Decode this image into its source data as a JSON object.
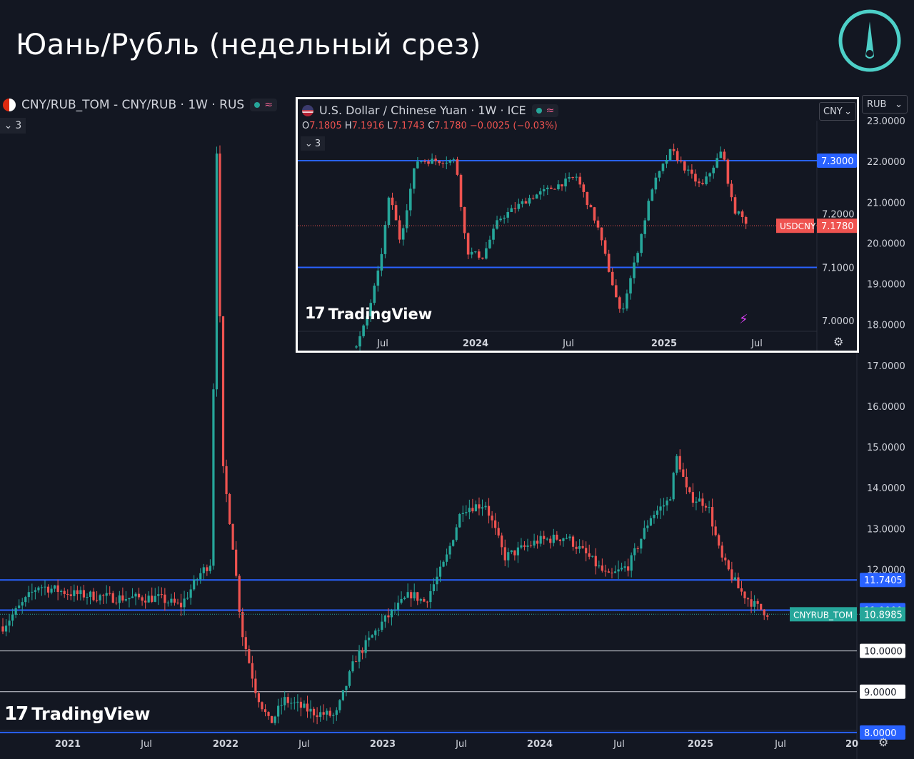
{
  "page": {
    "title": "Юань/Рубль (недельный срез)"
  },
  "main_header": {
    "symbol": "CNY/RUB_TOM - CNY/RUB · 1W · RUS",
    "collapse_label": "3",
    "currency": "RUB"
  },
  "inset_header": {
    "symbol": "U.S. Dollar / Chinese Yuan · 1W · ICE",
    "ohlc_o_key": "O",
    "ohlc_o": "7.1805",
    "ohlc_h_key": "H",
    "ohlc_h": "7.1916",
    "ohlc_l_key": "L",
    "ohlc_l": "7.1743",
    "ohlc_c_key": "C",
    "ohlc_c": "7.1780",
    "ohlc_change": "−0.0025 (−0.03%)",
    "collapse_label": "3",
    "currency": "CNY"
  },
  "branding": {
    "logo_text": "TradingView"
  },
  "chart_data": [
    {
      "type": "candlestick",
      "symbol": "CNYRUB_TOM",
      "interval": "1W",
      "last_value": 10.8985,
      "last_label": "CNYRUB_TOM",
      "last_value_label": "10.8985",
      "ylim": [
        7.0,
        23.2
      ],
      "y_ticks": [
        "23.0000",
        "22.0000",
        "21.0000",
        "20.0000",
        "19.0000",
        "18.0000",
        "17.0000",
        "16.0000",
        "15.0000",
        "14.0000",
        "13.0000",
        "12.0000",
        "10.0000",
        "9.0000"
      ],
      "x_ticks": [
        "2021",
        "Jul",
        "2022",
        "Jul",
        "2023",
        "Jul",
        "2024",
        "Jul",
        "2025",
        "Jul",
        "20"
      ],
      "horizontal_lines": [
        {
          "value": 11.7405,
          "color": "#2962ff",
          "label": "11.7405"
        },
        {
          "value": 11.0,
          "color": "#2962ff",
          "label": "11.0000"
        },
        {
          "value": 10.0,
          "color": "#d1d4dc",
          "label": "10.0000"
        },
        {
          "value": 9.0,
          "color": "#d1d4dc",
          "label": "9.0000"
        },
        {
          "value": 8.0,
          "color": "#2962ff",
          "label": "8.0000"
        }
      ],
      "series_keypoints": [
        {
          "x": "2020-12-01",
          "y": 10.6
        },
        {
          "x": "2021-02-15",
          "y": 11.6
        },
        {
          "x": "2021-05-01",
          "y": 11.4
        },
        {
          "x": "2021-08-01",
          "y": 11.3
        },
        {
          "x": "2021-11-01",
          "y": 11.3
        },
        {
          "x": "2021-12-20",
          "y": 11.1
        },
        {
          "x": "2022-02-01",
          "y": 11.9
        },
        {
          "x": "2022-02-25",
          "y": 12.2
        },
        {
          "x": "2022-03-07",
          "y": 22.9
        },
        {
          "x": "2022-03-21",
          "y": 14.5
        },
        {
          "x": "2022-04-10",
          "y": 12.8
        },
        {
          "x": "2022-05-01",
          "y": 10.5
        },
        {
          "x": "2022-06-01",
          "y": 9.0
        },
        {
          "x": "2022-07-01",
          "y": 8.2
        },
        {
          "x": "2022-08-01",
          "y": 8.8
        },
        {
          "x": "2022-10-01",
          "y": 8.5
        },
        {
          "x": "2022-11-20",
          "y": 8.4
        },
        {
          "x": "2023-01-01",
          "y": 9.8
        },
        {
          "x": "2023-03-01",
          "y": 10.7
        },
        {
          "x": "2023-05-01",
          "y": 11.4
        },
        {
          "x": "2023-06-01",
          "y": 11.2
        },
        {
          "x": "2023-07-15",
          "y": 12.2
        },
        {
          "x": "2023-08-20",
          "y": 13.5
        },
        {
          "x": "2023-10-10",
          "y": 13.6
        },
        {
          "x": "2023-11-20",
          "y": 12.3
        },
        {
          "x": "2024-02-01",
          "y": 12.7
        },
        {
          "x": "2024-04-01",
          "y": 12.8
        },
        {
          "x": "2024-05-20",
          "y": 12.3
        },
        {
          "x": "2024-07-01",
          "y": 11.8
        },
        {
          "x": "2024-08-15",
          "y": 12.1
        },
        {
          "x": "2024-10-01",
          "y": 13.3
        },
        {
          "x": "2024-11-10",
          "y": 13.7
        },
        {
          "x": "2024-11-27",
          "y": 14.8
        },
        {
          "x": "2024-12-20",
          "y": 13.8
        },
        {
          "x": "2025-02-01",
          "y": 13.6
        },
        {
          "x": "2025-03-01",
          "y": 12.3
        },
        {
          "x": "2025-04-10",
          "y": 11.5
        },
        {
          "x": "2025-05-15",
          "y": 11.1
        },
        {
          "x": "2025-06-15",
          "y": 10.9
        }
      ]
    },
    {
      "type": "candlestick",
      "symbol": "USDCNY",
      "interval": "1W",
      "last_value": 7.178,
      "last_label": "USDCNY",
      "last_value_label": "7.1780",
      "ylim": [
        6.95,
        7.33
      ],
      "y_ticks": [
        "7.2000",
        "7.1000",
        "7.0000"
      ],
      "x_ticks": [
        "Jul",
        "2024",
        "Jul",
        "2025",
        "Jul"
      ],
      "horizontal_lines": [
        {
          "value": 7.3,
          "color": "#2962ff",
          "label": "7.3000"
        },
        {
          "value": 7.1,
          "color": "#2962ff"
        }
      ],
      "series_keypoints": [
        {
          "x": "2023-05-01",
          "y": 6.95
        },
        {
          "x": "2023-05-20",
          "y": 7.0
        },
        {
          "x": "2023-06-15",
          "y": 7.1
        },
        {
          "x": "2023-07-05",
          "y": 7.24
        },
        {
          "x": "2023-07-25",
          "y": 7.15
        },
        {
          "x": "2023-08-25",
          "y": 7.3
        },
        {
          "x": "2023-10-01",
          "y": 7.3
        },
        {
          "x": "2023-11-10",
          "y": 7.3
        },
        {
          "x": "2023-12-01",
          "y": 7.13
        },
        {
          "x": "2024-01-01",
          "y": 7.12
        },
        {
          "x": "2024-02-01",
          "y": 7.19
        },
        {
          "x": "2024-04-01",
          "y": 7.23
        },
        {
          "x": "2024-07-01",
          "y": 7.27
        },
        {
          "x": "2024-08-10",
          "y": 7.18
        },
        {
          "x": "2024-09-25",
          "y": 7.01
        },
        {
          "x": "2024-10-25",
          "y": 7.12
        },
        {
          "x": "2024-11-25",
          "y": 7.25
        },
        {
          "x": "2025-01-01",
          "y": 7.32
        },
        {
          "x": "2025-02-01",
          "y": 7.28
        },
        {
          "x": "2025-03-01",
          "y": 7.25
        },
        {
          "x": "2025-04-10",
          "y": 7.32
        },
        {
          "x": "2025-05-01",
          "y": 7.21
        },
        {
          "x": "2025-06-01",
          "y": 7.18
        }
      ]
    }
  ],
  "colors": {
    "up": "#26a69a",
    "down": "#ef5350",
    "line_blue": "#2962ff",
    "line_white": "#d1d4dc",
    "background": "#131722",
    "logo_accent": "#4dd0c8"
  }
}
